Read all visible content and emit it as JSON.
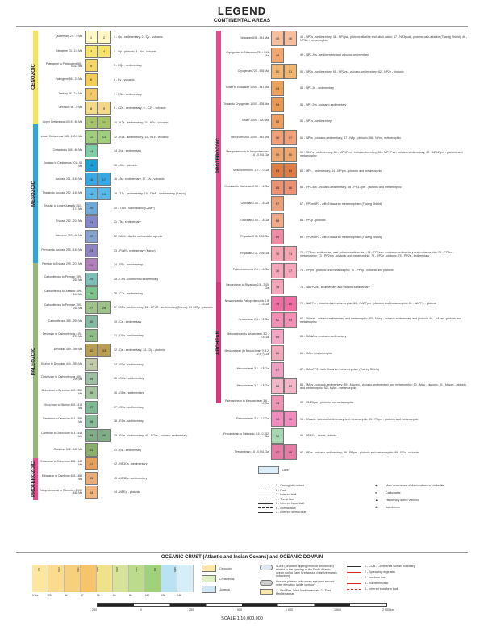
{
  "header": {
    "title": "LEGEND",
    "subtitle": "CONTINENTAL AREAS"
  },
  "eras": {
    "cenozoic": "CENOZOIC",
    "mesozoic": "MESOZOIC",
    "paleozoic": "PALEOZOIC",
    "proterozoic_left": "PROTEROZOIC",
    "proterozoic_right": "PROTEROZOIC",
    "archean": "ARCHEAN"
  },
  "left_rows": [
    {
      "age": "Quaternary 2.6 - 0 Ma",
      "n1": "1",
      "n2": "2",
      "desc": "1 - Qs - sedimentary; 2 - Qv - volcanic"
    },
    {
      "age": "Neogene 23 - 2.6 Ma",
      "n1": "3",
      "n2": "4",
      "desc": "3 - Np - plutonic; 4 - Nv - volcanic"
    },
    {
      "age": "Paleogene to Pleistocene 66 - 0.012 Ma",
      "n1": "5",
      "n2": "",
      "desc": "5 - EQs - sedimentary"
    },
    {
      "age": "Paleogene 66 - 23 Ma",
      "n1": "6",
      "n2": "",
      "desc": "6 - Ev - volcanic"
    },
    {
      "age": "Tertiary 66 - 2.6 Ma",
      "n1": "7",
      "n2": "",
      "desc": "7 - PNs - sedimentary"
    },
    {
      "age": "Cenozoic 66 - 0 Ma",
      "n1": "8",
      "n2": "9",
      "desc": "8 - CZs - sedimentary; 9 - CZv - volcanic"
    },
    {
      "age": "Upper Cretaceous 100.5 - 66 Ma",
      "n1": "10",
      "n2": "11",
      "desc": "10 - K2s - sedimentary; 11 - K2v - volcanic"
    },
    {
      "age": "Lower Cretaceous 145 - 100.5 Ma",
      "n1": "12",
      "n2": "13",
      "desc": "12 - K1s - sedimentary; 13 - K1v - volcanic"
    },
    {
      "age": "Cretaceous 145 - 66 Ma",
      "n1": "14",
      "n2": "",
      "desc": "14 - Ks - sedimentary"
    },
    {
      "age": "Jurassic to Cretaceous 201 - 66 Ma",
      "n1": "15",
      "n2": "",
      "desc": "15 - JKp - plutonic"
    },
    {
      "age": "Jurassic 201 - 145 Ma",
      "n1": "16",
      "n2": "17",
      "desc": "16 - Js - sedimentary; 17 - Jv - volcanic"
    },
    {
      "age": "Triassic to Jurassic 252 - 145 Ma",
      "n1": "18",
      "n2": "19",
      "desc": "18 - TJs - sedimentary; 19 - TJsR - sedimentary (Karoo)"
    },
    {
      "age": "Triassic to Lower Jurassic 252 - 174 Ma",
      "n1": "20",
      "n2": "",
      "desc": "20 - TJ1v - subvolcanic (CAMP)"
    },
    {
      "age": "Triassic 252 - 201 Ma",
      "n1": "21",
      "n2": "",
      "desc": "21 - Ts - sedimentary"
    },
    {
      "age": "Mesozoic 252 - 66 Ma",
      "n1": "22",
      "n2": "",
      "desc": "22 - MZd - diorite, carbonatite, syenite"
    },
    {
      "age": "Permian to Jurassic 299 - 145 Ma",
      "n1": "23",
      "n2": "",
      "desc": "23 - PJsR - sedimentary (Karoo)"
    },
    {
      "age": "Permian to Triassic 299 - 201 Ma",
      "n1": "24",
      "n2": "",
      "desc": "24 - PTs - sedimentary"
    },
    {
      "age": "Carboniferous to Permian 359 - 252 Ma",
      "n1": "25",
      "n2": "",
      "desc": "25 - CPs - continental sedimentary"
    },
    {
      "age": "Carboniferous to Jurassic 359 - 145 Ma",
      "n1": "26",
      "n2": "",
      "desc": "26 - CJs - sedimentary"
    },
    {
      "age": "Carboniferous to Permian 359 - 252 Ma",
      "n1": "27",
      "n2": "28",
      "desc": "27 - CPs - sedimentary; 28 - CPsR - sedimentary (Karoo); 29 - CPp - plutonic"
    },
    {
      "age": "Carboniferous 359 - 299 Ma",
      "n1": "30",
      "n2": "",
      "desc": "30 - Cs - sedimentary"
    },
    {
      "age": "Devonian to Carboniferous 419 - 299 Ma",
      "n1": "31",
      "n2": "",
      "desc": "31 - DCs - sedimentary"
    },
    {
      "age": "Devonian 419 - 359 Ma",
      "n1": "32",
      "n2": "33",
      "desc": "32 - Ds - sedimentary; 33 - Dp - plutonic"
    },
    {
      "age": "Silurian to Devonian 444 - 359 Ma",
      "n1": "34",
      "n2": "",
      "desc": "34 - SDs - sedimentary"
    },
    {
      "age": "Ordovician to Carboniferous 485 - 299 Ma",
      "n1": "35",
      "n2": "",
      "desc": "35 - OCs - sedimentary"
    },
    {
      "age": "Ordovician to Devonian 485 - 359 Ma",
      "n1": "36",
      "n2": "",
      "desc": "36 - ODs - sedimentary"
    },
    {
      "age": "Ordovician to Silurian 485 - 419 Ma",
      "n1": "37",
      "n2": "",
      "desc": "37 - OSs - sedimentary"
    },
    {
      "age": "Cambrian to Devonian 541 - 359 Ma",
      "n1": "38",
      "n2": "",
      "desc": "38 - EDs - sedimentary"
    },
    {
      "age": "Cambrian to Ordovician 541 - 443 Ma",
      "n1": "39",
      "n2": "40",
      "desc": "39 - EOs - sedimentary; 40 - EOvs - volcano-sedimentary"
    },
    {
      "age": "Cambrian 541 - 485 Ma",
      "n1": "41",
      "n2": "",
      "desc": "41 - Es - sedimentary"
    },
    {
      "age": "Ediacaran to Ordovician 635 - 443 Ma",
      "n1": "42",
      "n2": "",
      "desc": "42 - NP3Os - sedimentary"
    },
    {
      "age": "Ediacaran to Cambrian 635 - 485 Ma",
      "n1": "43",
      "n2": "",
      "desc": "43 - NP3Es - sedimentary"
    },
    {
      "age": "Neoproterozoic to Cambrian 1,000 - 485 Ma",
      "n1": "44",
      "n2": "",
      "desc": "44 - NPEp - plutonic"
    }
  ],
  "right_rows": [
    {
      "age": "Ediacaran 635 - 541 Ma",
      "n1": "45",
      "n2": "46",
      "desc": "45 - NP3s - sedimentary; 46 - NP3pa - plutonic alkaline and alkali-calcic; 47 - NP3pcat - plutonic calc-alkaline (Tuareg Shield); 48 - NP3m - metamorphic"
    },
    {
      "age": "Cryogenian to Ediacaran 720 - 541 Ma",
      "n1": "49",
      "n2": "",
      "desc": "49 - NP2-3vs - sedimentary and volcano-sedimentary"
    },
    {
      "age": "Cryogenian 720 - 635 Ma",
      "n1": "50",
      "n2": "51",
      "desc": "50 - NP2s - sedimentary; 51 - NP2vs - volcano-sedimentary; 52 - NP2p - plutonic"
    },
    {
      "age": "Tonian to Ediacaran 1,000 - 541 Ma",
      "n1": "53",
      "n2": "",
      "desc": "53 - NP1-3s - sedimentary"
    },
    {
      "age": "Tonian to Cryogenian 1,000 - 635 Ma",
      "n1": "54",
      "n2": "",
      "desc": "54 - NP1-2vs - volcano-sedimentary"
    },
    {
      "age": "Tonian 1,000 - 720 Ma",
      "n1": "55",
      "n2": "",
      "desc": "55 - NP1s - sedimentary"
    },
    {
      "age": "Neoproterozoic 1,000 - 541 Ma",
      "n1": "56",
      "n2": "57",
      "desc": "56 - NPvs - volcano-sedimentary; 57 - NPp - plutonic; 58 - NPm - metamorphic"
    },
    {
      "age": "Mesoproterozoic to Neoproterozoic 1.6 - 0.541 Ga",
      "n1": "59",
      "n2": "60",
      "desc": "59 - MNPs - sedimentary; 60 - MPNPmx - metasedimentary; 61 - MPNPvs - volcano-sedimentary; 62 - MPNPpm - plutonic and metamorphic"
    },
    {
      "age": "Mesoproterozoic 1.6 - 1.0 Ga",
      "n1": "63",
      "n2": "64",
      "desc": "63 - MPs - sedimentary; 64 - MPpm - plutonic and metamorphic"
    },
    {
      "age": "Orosirian to Statherian 2.05 - 1.6 Ga",
      "n1": "65",
      "n2": "66",
      "desc": "65 - PP3-4vs - volcano-sedimentary; 66 - PP3-4pm - plutonic and metamorphic"
    },
    {
      "age": "Orosirian 2.05 - 1.8 Ga",
      "n1": "67",
      "n2": "",
      "desc": "67 - PP3mNP3 - with Ediacaran metamorphism (Tuareg Shield)"
    },
    {
      "age": "Orosirian 2.05 - 1.8 Ga",
      "n1": "68",
      "n2": "",
      "desc": "68 - PP3p - plutonic"
    },
    {
      "age": "Rhyacian 2.3 - 2.05 Ga",
      "n1": "69",
      "n2": "",
      "desc": "69 - PP2mNP3 - with Ediacaran metamorphism (Tuareg Shield)"
    },
    {
      "age": "Rhyacian 2.3 - 2.05 Ga",
      "n1": "70",
      "n2": "71",
      "desc": "70 - PP2vs - sedimentary and volcano-sedimentary; 71 - PP2vsm - volcano-sedimentary and metamorphic; 72 - PP2m - metamorphic; 73 - PP2pm - plutonic and metamorphic; 74 - PP2p - plutonic; 75 - PP2s - sedimentary"
    },
    {
      "age": "Paleoproterozoic 2.5 - 1.6 Ga",
      "n1": "76",
      "n2": "77",
      "desc": "76 - PPpm - plutonic and metamorphic; 77 - PPvp - volcanic and plutonic"
    },
    {
      "age": "Neoarchean to Rhyacian 2.8 - 2.05 Ga",
      "n1": "78",
      "n2": "",
      "desc": "78 - NAPP2vs - sedimentary and volcano-sedimentary"
    },
    {
      "age": "Neoarchean to Paleoproterozoic 2.8 - 1.6 Ga",
      "n1": "79",
      "n2": "80",
      "desc": "79 - NAPPm - plutonic and metamorphic; 80 - NAPPpm - plutonic and metamorphic; 81 - NAPPp - plutonic"
    },
    {
      "age": "Neoarchean 2.8 - 2.5 Ga",
      "n1": "82",
      "n2": "83",
      "desc": "82 - NAvsm - volcano-sedimentary and metamorphic; 83 - NAsp - volcano-sedimentary and plutonic; 84 - NApm - plutonic and metamorphic"
    },
    {
      "age": "Mesoarchean to Neoarchean 3.2 - 2.5 Ga",
      "n1": "85",
      "n2": "",
      "desc": "85 - MANAvs - volcano-sedimentary"
    },
    {
      "age": "Mesoarchean (to Neoarchean ?) 3.2 - 2.5(?) Ga",
      "n1": "86",
      "n2": "",
      "desc": "86 - MAm - metamorphic"
    },
    {
      "age": "Mesoarchean 3.2 - 2.8 Ga",
      "n1": "87",
      "n2": "",
      "desc": "87 - MAmPP3 - with Orosirian metamorphism (Tuareg Shield)"
    },
    {
      "age": "Mesoarchean 3.2 - 2.8 Ga",
      "n1": "88",
      "n2": "89",
      "desc": "88 - MAvs - volcano-sedimentary; 89 - MAvsm - volcano-sedimentary and metamorphic; 90 - MAp - plutonic; 91 - MApm - plutonic and metamorphic; 92 - MAm - metamorphic"
    },
    {
      "age": "Paleoarchean to Mesoarchean 3.6 - 2.8 Ga",
      "n1": "93",
      "n2": "",
      "desc": "93 - PAMApm - plutonic and metamorphic"
    },
    {
      "age": "Paleoarchean 3.6 - 3.2 Ga",
      "n1": "94",
      "n2": "95",
      "desc": "94 - PAvsm - volcano-sedimentary and metamorphic; 95 - PApm - plutonic and metamorphic"
    },
    {
      "age": "Precambrian to Paleozoic 4.6 - 0.252 Ga",
      "n1": "96",
      "n2": "",
      "desc": "96 - PEPZd - diorite, dolerite"
    },
    {
      "age": "Precambrian 4.6 - 0.541 Ga",
      "n1": "97",
      "n2": "98",
      "desc": "97 - PEvs - volcano-sedimentary; 98 - PEpm - plutonic and metamorphic; 99 - PEv - volcanic"
    }
  ],
  "lake": "Lake",
  "faults": [
    "1 - Geological contact",
    "2 - Fault",
    "3 - Inferred fault",
    "4 - Thrust fault",
    "5 - Inferred thrust fault",
    "6 - Normal fault",
    "7 - Inferred normal fault"
  ],
  "symbols": [
    "Main occurrence of diamondiferous kimberlite",
    "Carbonatite",
    "Historically active volcano",
    "Astrobleme"
  ],
  "oceanic": {
    "title": "OCEANIC CRUST (Atlantic and Indian Oceans) and OCEANIC DOMAIN",
    "col_labels": [
      "Cenozoic",
      "Cretaceous",
      "Jurassic"
    ],
    "sdrs": "SDRs (Seaward dipping reflector sequences) related to the opening of the South Atlantic ocean during Early Cretaceous (passive margin volcanism)",
    "plateau": "Oceanic plateau (with mean age) and second order elevation (white contour)",
    "sea_area": "1 - Red Sea, West Mediterranean; 2 - East Mediterranean",
    "lines": [
      "1 - COB - Continental Ocean Boundary",
      "2 - Spreading ridge axis",
      "3 - Isochron line",
      "4 - Transform fault",
      "5 - Inferred transform fault"
    ],
    "scale_ticks": [
      "250",
      "0",
      "250",
      "500",
      "1 000",
      "1 500",
      "2 000 km"
    ],
    "grad_labels": [
      "C5",
      "C13",
      "C21",
      "C25",
      "C29",
      "C33",
      "M0",
      "M25"
    ],
    "grad_ages": [
      "0 Ma",
      "23",
      "34",
      "47",
      "56",
      "66",
      "84",
      "120",
      "156",
      "180"
    ]
  },
  "scale": "SCALE 1:10,000,000",
  "colors": {
    "cenozoic_bar": "#f6e35c",
    "mesozoic_bar": "#2fa6d6",
    "paleozoic_bar": "#95b877",
    "proterozoic_bar": "#e54c8d",
    "archean_bar": "#d8387c"
  }
}
